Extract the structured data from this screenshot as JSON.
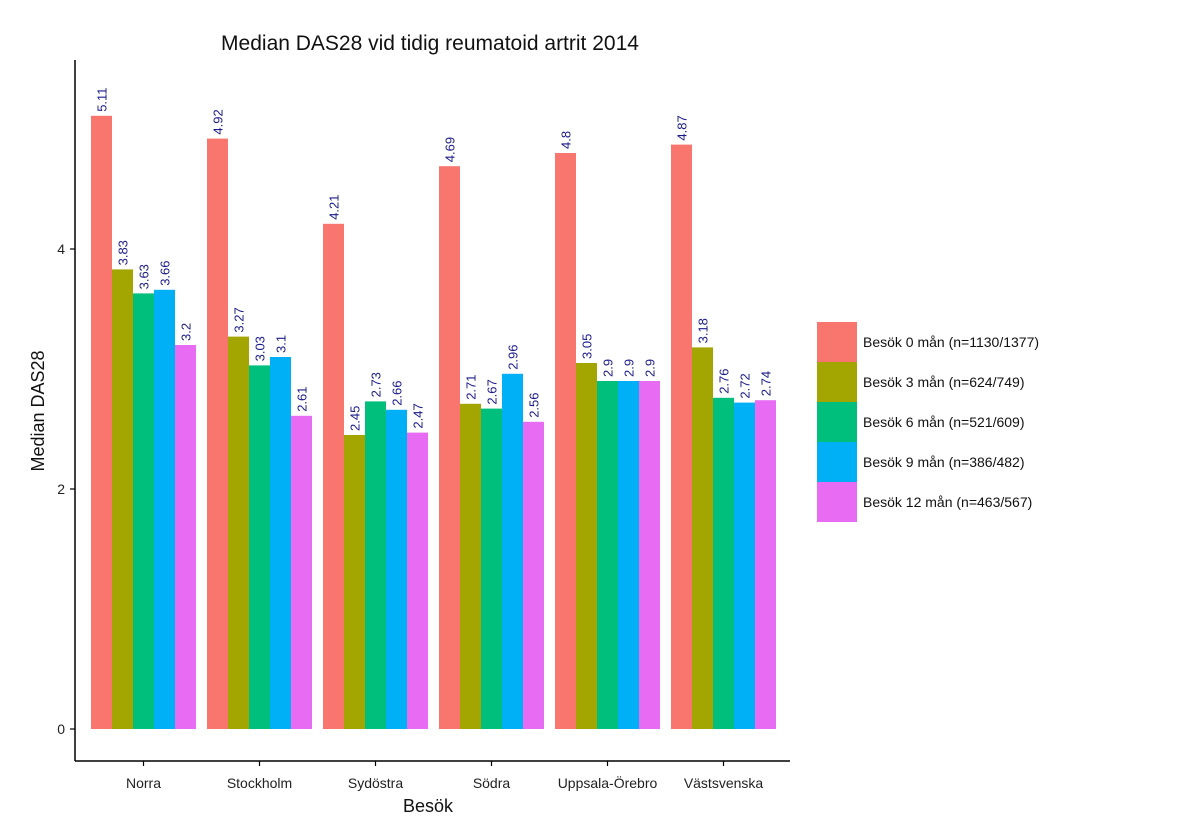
{
  "chart_data": {
    "type": "bar",
    "title": "Median DAS28 vid tidig reumatoid artrit 2014",
    "xlabel": "Besök",
    "ylabel": "Median DAS28",
    "ylim": [
      0,
      5.15
    ],
    "yticks": [
      0,
      2,
      4
    ],
    "grid": false,
    "legend_position": "right",
    "categories": [
      "Norra",
      "Stockholm",
      "Sydöstra",
      "Södra",
      "Uppsala-Örebro",
      "Västsvenska"
    ],
    "series": [
      {
        "name": "Besök 0 mån (n=1130/1377)",
        "color": "#F8766D",
        "values": [
          5.11,
          4.92,
          4.21,
          4.69,
          4.8,
          4.87
        ],
        "labels": [
          "5.11",
          "4.92",
          "4.21",
          "4.69",
          "4.8",
          "4.87"
        ]
      },
      {
        "name": "Besök 3 mån (n=624/749)",
        "color": "#A3A500",
        "values": [
          3.83,
          3.27,
          2.45,
          2.71,
          3.05,
          3.18
        ],
        "labels": [
          "3.83",
          "3.27",
          "2.45",
          "2.71",
          "3.05",
          "3.18"
        ]
      },
      {
        "name": "Besök 6 mån (n=521/609)",
        "color": "#00BF7D",
        "values": [
          3.63,
          3.03,
          2.73,
          2.67,
          2.9,
          2.76
        ],
        "labels": [
          "3.63",
          "3.03",
          "2.73",
          "2.67",
          "2.9",
          "2.76"
        ]
      },
      {
        "name": "Besök 9 mån (n=386/482)",
        "color": "#00B0F6",
        "values": [
          3.66,
          3.1,
          2.66,
          2.96,
          2.9,
          2.72
        ],
        "labels": [
          "3.66",
          "3.1",
          "2.66",
          "2.96",
          "2.9",
          "2.72"
        ]
      },
      {
        "name": "Besök 12 mån (n=463/567)",
        "color": "#E76BF3",
        "values": [
          3.2,
          2.61,
          2.47,
          2.56,
          2.9,
          2.74
        ],
        "labels": [
          "3.2",
          "2.61",
          "2.47",
          "2.56",
          "2.9",
          "2.74"
        ]
      }
    ],
    "value_label_color": "#1a1a8c",
    "axis_color": "#000000"
  }
}
